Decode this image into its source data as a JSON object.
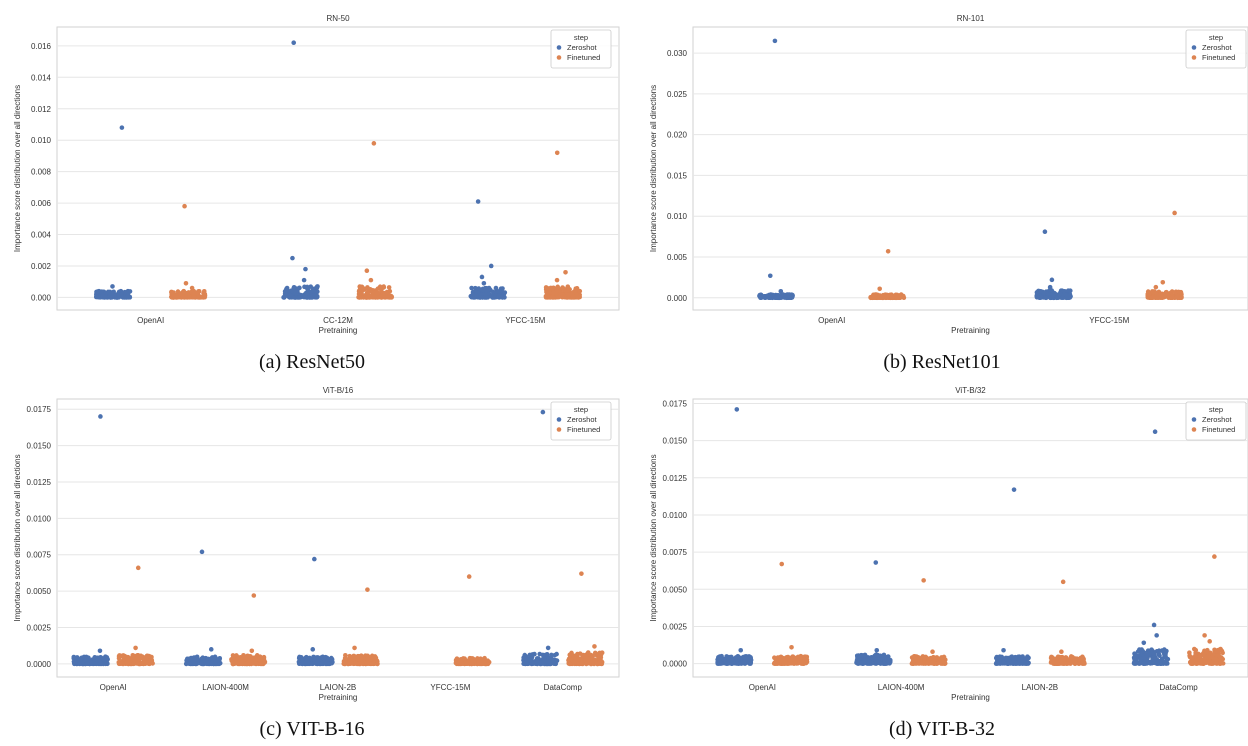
{
  "colors": {
    "zeroshot": "#4c72b0",
    "finetuned": "#dd8452",
    "grid": "#e6e6e6",
    "frame": "#d2d2d2"
  },
  "captions": [
    "(a) ResNet50",
    "(b) ResNet101",
    "(c) VIT-B-16",
    "(d) VIT-B-32"
  ],
  "chart_data": [
    {
      "type": "scatter",
      "title": "RN-50",
      "xlabel": "Pretraining",
      "ylabel": "Importance score distribution over all directions",
      "categories": [
        "OpenAI",
        "CC-12M",
        "YFCC-15M"
      ],
      "yticks": [
        "0.000",
        "0.002",
        "0.004",
        "0.006",
        "0.008",
        "0.010",
        "0.012",
        "0.014",
        "0.016"
      ],
      "ylim": [
        -0.0008,
        0.0172
      ],
      "grid": true,
      "legend": {
        "title": "step",
        "placement": "top-right",
        "entries": [
          "Zeroshot",
          "Finetuned"
        ]
      },
      "series": [
        {
          "name": "Zeroshot",
          "cluster_max": [
            0.0004,
            0.0007,
            0.0006
          ],
          "outliers": [
            [
              0,
              0.0108
            ],
            [
              0,
              0.0007
            ],
            [
              1,
              0.0162
            ],
            [
              1,
              0.0025
            ],
            [
              1,
              0.0018
            ],
            [
              1,
              0.0011
            ],
            [
              2,
              0.0061
            ],
            [
              2,
              0.002
            ],
            [
              2,
              0.0013
            ],
            [
              2,
              0.0009
            ]
          ]
        },
        {
          "name": "Finetuned",
          "cluster_max": [
            0.0004,
            0.0007,
            0.0007
          ],
          "outliers": [
            [
              0,
              0.0058
            ],
            [
              0,
              0.0009
            ],
            [
              0,
              0.0006
            ],
            [
              1,
              0.0098
            ],
            [
              1,
              0.0017
            ],
            [
              1,
              0.0011
            ],
            [
              2,
              0.0092
            ],
            [
              2,
              0.0016
            ],
            [
              2,
              0.0011
            ]
          ]
        }
      ]
    },
    {
      "type": "scatter",
      "title": "RN-101",
      "xlabel": "Pretraining",
      "ylabel": "Importance score distribution over all directions",
      "categories": [
        "OpenAI",
        "YFCC-15M"
      ],
      "yticks": [
        "0.000",
        "0.005",
        "0.010",
        "0.015",
        "0.020",
        "0.025",
        "0.030"
      ],
      "ylim": [
        -0.0015,
        0.0332
      ],
      "grid": true,
      "legend": {
        "title": "step",
        "placement": "top-right",
        "entries": [
          "Zeroshot",
          "Finetuned"
        ]
      },
      "series": [
        {
          "name": "Zeroshot",
          "cluster_max": [
            0.0004,
            0.0009
          ],
          "outliers": [
            [
              0,
              0.0315
            ],
            [
              0,
              0.0027
            ],
            [
              0,
              0.0008
            ],
            [
              1,
              0.0081
            ],
            [
              1,
              0.0022
            ],
            [
              1,
              0.0013
            ]
          ]
        },
        {
          "name": "Finetuned",
          "cluster_max": [
            0.0004,
            0.0008
          ],
          "outliers": [
            [
              0,
              0.0057
            ],
            [
              0,
              0.0011
            ],
            [
              1,
              0.0104
            ],
            [
              1,
              0.0019
            ],
            [
              1,
              0.0013
            ]
          ]
        }
      ]
    },
    {
      "type": "scatter",
      "title": "ViT-B/16",
      "xlabel": "Pretraining",
      "ylabel": "Importance score distribution over all directions",
      "categories": [
        "OpenAI",
        "LAION-400M",
        "LAION-2B",
        "YFCC-15M",
        "DataComp"
      ],
      "yticks": [
        "0.0000",
        "0.0025",
        "0.0050",
        "0.0075",
        "0.0100",
        "0.0125",
        "0.0150",
        "0.0175"
      ],
      "ylim": [
        -0.0009,
        0.0182
      ],
      "grid": true,
      "legend": {
        "title": "step",
        "placement": "top-right",
        "entries": [
          "Zeroshot",
          "Finetuned"
        ]
      },
      "series": [
        {
          "name": "Zeroshot",
          "cluster_max": [
            0.0005,
            0.0005,
            0.0005,
            null,
            0.0007
          ],
          "outliers": [
            [
              0,
              0.017
            ],
            [
              0,
              0.0009
            ],
            [
              1,
              0.0077
            ],
            [
              1,
              0.001
            ],
            [
              2,
              0.0072
            ],
            [
              2,
              0.001
            ],
            [
              4,
              0.0173
            ],
            [
              4,
              0.0011
            ]
          ]
        },
        {
          "name": "Finetuned",
          "cluster_max": [
            0.0006,
            0.0006,
            0.0006,
            0.0004,
            0.0008
          ],
          "outliers": [
            [
              0,
              0.0066
            ],
            [
              0,
              0.0011
            ],
            [
              1,
              0.0047
            ],
            [
              1,
              0.0009
            ],
            [
              2,
              0.0051
            ],
            [
              2,
              0.0011
            ],
            [
              3,
              0.006
            ],
            [
              4,
              0.0062
            ],
            [
              4,
              0.0012
            ]
          ]
        }
      ]
    },
    {
      "type": "scatter",
      "title": "ViT-B/32",
      "xlabel": "Pretraining",
      "ylabel": "Importance score distribution over all directions",
      "categories": [
        "OpenAI",
        "LAION-400M",
        "LAION-2B",
        "DataComp"
      ],
      "yticks": [
        "0.0000",
        "0.0025",
        "0.0050",
        "0.0075",
        "0.0100",
        "0.0125",
        "0.0150",
        "0.0175"
      ],
      "ylim": [
        -0.0009,
        0.0178
      ],
      "grid": true,
      "legend": {
        "title": "step",
        "placement": "top-right",
        "entries": [
          "Zeroshot",
          "Finetuned"
        ]
      },
      "series": [
        {
          "name": "Zeroshot",
          "cluster_max": [
            0.0005,
            0.0006,
            0.0005,
            0.001
          ],
          "outliers": [
            [
              0,
              0.0171
            ],
            [
              0,
              0.0009
            ],
            [
              1,
              0.0068
            ],
            [
              1,
              0.0009
            ],
            [
              2,
              0.0117
            ],
            [
              2,
              0.0009
            ],
            [
              3,
              0.0156
            ],
            [
              3,
              0.0026
            ],
            [
              3,
              0.0019
            ],
            [
              3,
              0.0014
            ]
          ]
        },
        {
          "name": "Finetuned",
          "cluster_max": [
            0.0005,
            0.0005,
            0.0005,
            0.001
          ],
          "outliers": [
            [
              0,
              0.0067
            ],
            [
              0,
              0.0011
            ],
            [
              1,
              0.0056
            ],
            [
              1,
              0.0008
            ],
            [
              2,
              0.0055
            ],
            [
              2,
              0.0008
            ],
            [
              3,
              0.0072
            ],
            [
              3,
              0.0019
            ],
            [
              3,
              0.0015
            ]
          ]
        }
      ]
    }
  ]
}
